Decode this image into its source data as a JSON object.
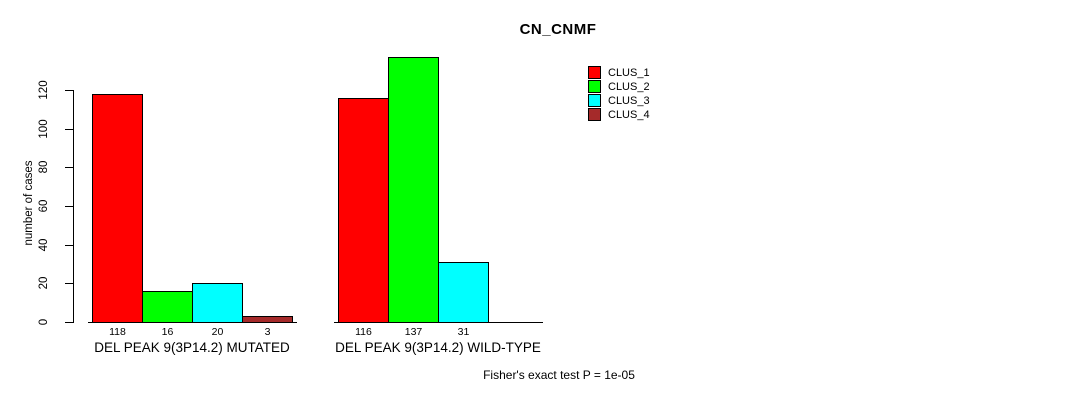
{
  "chart_data": {
    "type": "bar",
    "title": "CN_CNMF",
    "ylabel": "number of cases",
    "xlabel": "",
    "ylim": [
      0,
      137
    ],
    "yticks": [
      0,
      20,
      40,
      60,
      80,
      100,
      120
    ],
    "grid": false,
    "legend_position": "top-right",
    "bar_borders": "#000000",
    "categories": [
      "DEL PEAK 9(3P14.2) MUTATED",
      "DEL PEAK 9(3P14.2) WILD-TYPE"
    ],
    "series": [
      {
        "name": "CLUS_1",
        "color": "#ff0000",
        "values": [
          118,
          116
        ]
      },
      {
        "name": "CLUS_2",
        "color": "#00ff00",
        "values": [
          16,
          137
        ]
      },
      {
        "name": "CLUS_3",
        "color": "#00ffff",
        "values": [
          20,
          31
        ]
      },
      {
        "name": "CLUS_4",
        "color": "#a52a2a",
        "values": [
          3,
          0
        ]
      }
    ],
    "value_labels": {
      "shown": true,
      "hide_zero": true
    },
    "footnote": "Fisher's exact test P = 1e-05"
  }
}
